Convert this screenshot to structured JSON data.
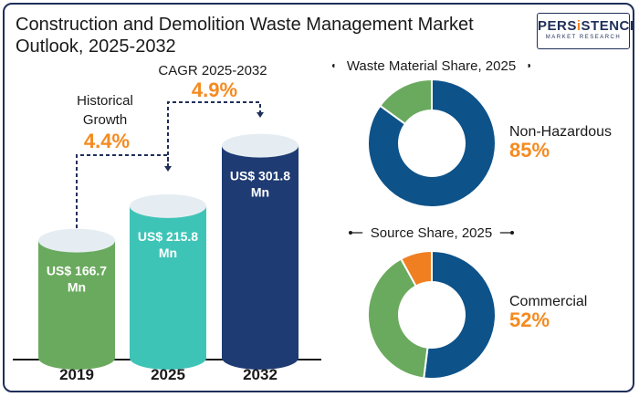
{
  "title": "Construction and Demolition Waste Management Market Outlook, 2025-2032",
  "logo": {
    "part1": "PERS",
    "accent": "i",
    "part2": "STENCE",
    "sub": "MARKET RESEARCH"
  },
  "growth": {
    "historical_label_line1": "Historical",
    "historical_label_line2": "Growth",
    "historical_value": "4.4%",
    "cagr_label": "CAGR 2025-2032",
    "cagr_value": "4.9%"
  },
  "colors": {
    "bar_2019": "#6aaa5e",
    "bar_2025": "#3ec4b7",
    "bar_2032": "#1f3b73",
    "accent_orange": "#f58a1f",
    "donut_blue": "#0d5289",
    "donut_green": "#6aaa5e",
    "donut_orange": "#f07f22"
  },
  "chart_data": [
    {
      "type": "bar",
      "categories": [
        "2019",
        "2025",
        "2032"
      ],
      "values": [
        166.7,
        215.8,
        301.8
      ],
      "value_labels": [
        [
          "US$ 166.7",
          "Mn"
        ],
        [
          "US$ 215.8",
          "Mn"
        ],
        [
          "US$ 301.8",
          "Mn"
        ]
      ],
      "unit": "US$ Mn"
    },
    {
      "type": "pie",
      "title": "Waste Material Share, 2025",
      "slices": [
        {
          "label": "Non-Hazardous",
          "value": 85,
          "color": "#0d5289"
        },
        {
          "value": 15,
          "color": "#6aaa5e"
        }
      ],
      "callout_label": "Non-Hazardous",
      "callout_value": "85%"
    },
    {
      "type": "pie",
      "title": "Source Share, 2025",
      "slices": [
        {
          "label": "Commercial",
          "value": 52,
          "color": "#0d5289"
        },
        {
          "value": 40,
          "color": "#6aaa5e"
        },
        {
          "value": 8,
          "color": "#f07f22"
        }
      ],
      "callout_label": "Commercial",
      "callout_value": "52%"
    }
  ]
}
